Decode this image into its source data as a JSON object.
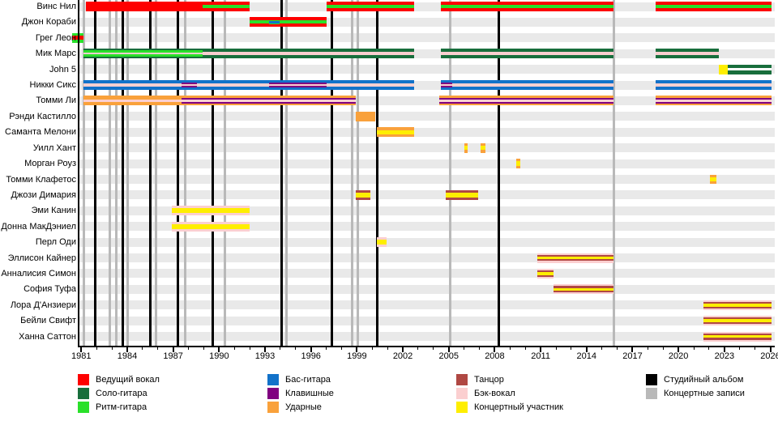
{
  "chart_data": {
    "type": "timeline",
    "title": "",
    "axis": {
      "tick_years": [
        1981,
        1984,
        1987,
        1990,
        1993,
        1996,
        1999,
        2002,
        2005,
        2008,
        2011,
        2014,
        2017,
        2020,
        2023,
        2026
      ],
      "minor_tick_step": 1,
      "year_min": 1981,
      "year_max": 2026
    },
    "members": [
      {
        "name": "Винс Нил",
        "segments": [
          [
            1981.3,
            1988.9,
            "lead"
          ],
          [
            1988.9,
            1992.0,
            "lead_rhythm"
          ],
          [
            1997.0,
            2002.75,
            "lead_rhythm"
          ],
          [
            2004.5,
            2015.75,
            "lead_rhythm"
          ],
          [
            2018.5,
            2026.1,
            "lead_rhythm"
          ]
        ]
      },
      {
        "name": "Джон Кораби",
        "segments": [
          [
            1992.0,
            1993.25,
            "lead_rhythm"
          ],
          [
            1993.25,
            1993.95,
            "lead_rhythm_bass"
          ],
          [
            1993.95,
            1997.0,
            "lead_rhythm"
          ]
        ]
      },
      {
        "name": "Грег Леон",
        "segments": [
          [
            1980.4,
            1981.15,
            "rhythm_lead"
          ]
        ]
      },
      {
        "name": "Мик Марс",
        "segments": [
          [
            1981.15,
            1988.9,
            "lead_rhythm_guitar_bv"
          ],
          [
            1988.9,
            2002.75,
            "leadguitar_bv"
          ],
          [
            2004.5,
            2015.75,
            "leadguitar_bv"
          ],
          [
            2018.5,
            2022.65,
            "leadguitar_bv"
          ]
        ]
      },
      {
        "name": "John 5",
        "segments": [
          [
            2022.65,
            2023.2,
            "touring"
          ],
          [
            2023.2,
            2026.1,
            "leadguitar_split"
          ]
        ]
      },
      {
        "name": "Никки Сикс",
        "segments": [
          [
            1981.15,
            1987.55,
            "bass_bv"
          ],
          [
            1987.55,
            1988.55,
            "bass_keys_bv"
          ],
          [
            1988.55,
            1993.25,
            "bass_bv"
          ],
          [
            1993.25,
            1997.0,
            "bass_keys_bv"
          ],
          [
            1997.0,
            2002.75,
            "bass_bv"
          ],
          [
            2004.5,
            2005.2,
            "bass_keys_bv"
          ],
          [
            2005.2,
            2015.75,
            "bass_bv"
          ],
          [
            2018.5,
            2026.1,
            "bass_bv"
          ]
        ]
      },
      {
        "name": "Томми Ли",
        "segments": [
          [
            1981.15,
            1987.55,
            "drums_bv"
          ],
          [
            1987.55,
            1998.95,
            "drums_keys_bv"
          ],
          [
            2004.4,
            2015.75,
            "drums_keys_bv"
          ],
          [
            2018.5,
            2026.1,
            "drums_keys_bv"
          ]
        ]
      },
      {
        "name": "Рэнди Кастилло",
        "segments": [
          [
            1998.95,
            2000.2,
            "drums"
          ]
        ]
      },
      {
        "name": "Саманта Мелони",
        "segments": [
          [
            2000.3,
            2002.75,
            "drums_touring"
          ]
        ]
      },
      {
        "name": "Уилл Хант",
        "segments": [
          [
            2006.0,
            2006.25,
            "drums_touring"
          ],
          [
            2007.1,
            2007.4,
            "drums_touring"
          ]
        ]
      },
      {
        "name": "Морган Роуз",
        "segments": [
          [
            2009.4,
            2009.65,
            "drums_touring"
          ]
        ]
      },
      {
        "name": "Томми Клафетос",
        "segments": [
          [
            2022.05,
            2022.5,
            "drums_touring"
          ]
        ]
      },
      {
        "name": "Джози Димария",
        "segments": [
          [
            1998.95,
            1999.9,
            "dancer_touring"
          ],
          [
            2004.8,
            2006.9,
            "dancer_touring"
          ]
        ]
      },
      {
        "name": "Эми Канин",
        "segments": [
          [
            1986.9,
            1992.0,
            "bv_touring"
          ]
        ]
      },
      {
        "name": "Донна МакДэниел",
        "segments": [
          [
            1986.9,
            1992.0,
            "bv_touring"
          ]
        ]
      },
      {
        "name": "Перл Оди",
        "segments": [
          [
            2000.3,
            2000.95,
            "bv_touring"
          ]
        ]
      },
      {
        "name": "Эллисон Кайнер",
        "segments": [
          [
            2010.8,
            2015.75,
            "dancer_bv_touring"
          ]
        ]
      },
      {
        "name": "Анналисия Симон",
        "segments": [
          [
            2010.8,
            2011.85,
            "dancer_bv_touring"
          ]
        ]
      },
      {
        "name": "София Туфа",
        "segments": [
          [
            2011.85,
            2015.75,
            "dancer_bv_touring"
          ]
        ]
      },
      {
        "name": "Лора Д'Анзиери",
        "segments": [
          [
            2021.65,
            2026.1,
            "dancer_bv_touring"
          ]
        ]
      },
      {
        "name": "Бейли Свифт",
        "segments": [
          [
            2021.65,
            2026.1,
            "dancer_bv_touring"
          ]
        ]
      },
      {
        "name": "Ханна Саттон",
        "segments": [
          [
            2021.65,
            2026.1,
            "dancer_bv_touring"
          ]
        ]
      }
    ],
    "patterns": {
      "lead": [
        [
          "red",
          1
        ]
      ],
      "lead_rhythm": [
        [
          "red",
          4
        ],
        [
          "brightgreen",
          4
        ],
        [
          "red",
          4
        ]
      ],
      "lead_rhythm_bass": [
        [
          "red",
          3.5
        ],
        [
          "brightgreen",
          1.5
        ],
        [
          "blue",
          3
        ],
        [
          "brightgreen",
          1.5
        ],
        [
          "red",
          3.5
        ]
      ],
      "rhythm_lead": [
        [
          "brightgreen",
          3.5
        ],
        [
          "red",
          5
        ],
        [
          "brightgreen",
          3.5
        ]
      ],
      "lead_rhythm_guitar_bv": [
        [
          "darkgreen",
          2
        ],
        [
          "brightgreen",
          3
        ],
        [
          "pink",
          2
        ],
        [
          "brightgreen",
          3
        ],
        [
          "darkgreen",
          2
        ]
      ],
      "leadguitar_bv": [
        [
          "darkgreen",
          4
        ],
        [
          "pink",
          3.5
        ],
        [
          "darkgreen",
          4
        ]
      ],
      "touring": [
        [
          "yellow",
          1
        ]
      ],
      "leadguitar_split": [
        [
          "darkgreen",
          4
        ],
        [
          "white",
          2.5
        ],
        [
          "darkgreen",
          4
        ]
      ],
      "bass_bv": [
        [
          "blue",
          4
        ],
        [
          "pink",
          3.5
        ],
        [
          "blue",
          4
        ]
      ],
      "bass_keys_bv": [
        [
          "blue",
          3
        ],
        [
          "purple",
          2
        ],
        [
          "pink",
          2.5
        ],
        [
          "purple",
          2
        ],
        [
          "blue",
          3
        ]
      ],
      "drums_bv": [
        [
          "orange",
          4
        ],
        [
          "pink",
          3.5
        ],
        [
          "orange",
          4
        ]
      ],
      "drums_keys_bv": [
        [
          "orange",
          3
        ],
        [
          "purple",
          2
        ],
        [
          "pink",
          2.5
        ],
        [
          "purple",
          2
        ],
        [
          "orange",
          3
        ]
      ],
      "drums": [
        [
          "orange",
          1
        ]
      ],
      "drums_touring": [
        [
          "orange",
          3
        ],
        [
          "yellow",
          5
        ],
        [
          "orange",
          3
        ]
      ],
      "dancer_touring": [
        [
          "maroon",
          3
        ],
        [
          "yellow",
          5.5
        ],
        [
          "maroon",
          3
        ]
      ],
      "bv_touring": [
        [
          "pink",
          3
        ],
        [
          "yellow",
          5.5
        ],
        [
          "pink",
          3
        ]
      ],
      "dancer_bv_touring": [
        [
          "pink",
          2
        ],
        [
          "maroon",
          2
        ],
        [
          "yellow",
          3.5
        ],
        [
          "maroon",
          2
        ],
        [
          "pink",
          2
        ]
      ]
    },
    "studio_albums_years": [
      1981.9,
      1983.7,
      1985.5,
      1987.3,
      1989.6,
      1994.1,
      1997.35,
      2000.35,
      2008.25
    ],
    "live_recordings_years": [
      1981.15,
      1982.85,
      1983.3,
      1984.05,
      1985.9,
      1987.8,
      1990.4,
      1994.4,
      1998.7,
      1999.05,
      2005.1,
      2015.8
    ]
  },
  "legend": {
    "columns": [
      [
        {
          "label": "Ведущий вокал",
          "color": "red"
        },
        {
          "label": "Соло-гитара",
          "color": "darkgreen"
        },
        {
          "label": "Ритм-гитара",
          "color": "brightgreen"
        }
      ],
      [
        {
          "label": "Бас-гитара",
          "color": "blue"
        },
        {
          "label": "Клавишные",
          "color": "purple"
        },
        {
          "label": "Ударные",
          "color": "orange"
        }
      ],
      [
        {
          "label": "Танцор",
          "color": "maroon"
        },
        {
          "label": "Бэк-вокал",
          "color": "pink"
        },
        {
          "label": "Концертный участник",
          "color": "yellow"
        }
      ],
      [
        {
          "label": "Студийный альбом",
          "color": "black"
        },
        {
          "label": "Концертные записи",
          "color": "gray"
        }
      ]
    ]
  },
  "colors": {
    "red": "#fe0000",
    "darkgreen": "#186e3c",
    "brightgreen": "#2ae02a",
    "blue": "#1272c9",
    "purple": "#800080",
    "orange": "#f9a13b",
    "maroon": "#b04843",
    "pink": "#fbcfd0",
    "yellow": "#feee00",
    "black": "#000000",
    "gray": "#b9b9b9",
    "white": "#ffffff"
  }
}
